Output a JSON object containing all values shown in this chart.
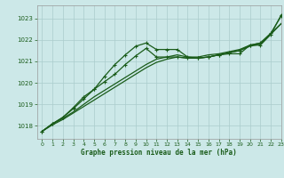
{
  "background_color": "#cce8e8",
  "grid_color": "#aacccc",
  "line_color": "#1a5c1a",
  "title": "Graphe pression niveau de la mer (hPa)",
  "xlim": [
    -0.5,
    23
  ],
  "ylim": [
    1017.4,
    1023.6
  ],
  "yticks": [
    1018,
    1019,
    1020,
    1021,
    1022,
    1023
  ],
  "xticks": [
    0,
    1,
    2,
    3,
    4,
    5,
    6,
    7,
    8,
    9,
    10,
    11,
    12,
    13,
    14,
    15,
    16,
    17,
    18,
    19,
    20,
    21,
    22,
    23
  ],
  "s1_x": [
    0,
    1,
    2,
    3,
    4,
    5,
    6,
    7,
    8,
    9,
    10,
    11,
    12,
    13,
    14,
    15,
    16,
    17,
    18,
    19,
    20,
    21,
    22,
    23
  ],
  "s1_y": [
    1017.75,
    1018.1,
    1018.4,
    1018.8,
    1019.25,
    1019.7,
    1020.3,
    1020.85,
    1021.3,
    1021.7,
    1021.85,
    1021.55,
    1021.55,
    1021.55,
    1021.2,
    1021.15,
    1021.2,
    1021.3,
    1021.35,
    1021.35,
    1021.75,
    1021.75,
    1022.25,
    1023.15
  ],
  "s2_x": [
    0,
    1,
    2,
    3,
    4,
    5,
    6,
    7,
    8,
    9,
    10,
    11,
    12,
    13,
    14,
    15,
    16,
    17,
    18,
    19,
    20,
    21,
    22,
    23
  ],
  "s2_y": [
    1017.75,
    1018.1,
    1018.35,
    1018.65,
    1019.0,
    1019.35,
    1019.65,
    1019.95,
    1020.25,
    1020.55,
    1020.85,
    1021.1,
    1021.2,
    1021.3,
    1021.2,
    1021.2,
    1021.3,
    1021.35,
    1021.45,
    1021.55,
    1021.75,
    1021.85,
    1022.3,
    1022.75
  ],
  "s3_x": [
    0,
    1,
    2,
    3,
    4,
    5,
    6,
    7,
    8,
    9,
    10,
    11,
    12,
    13,
    14,
    15,
    16,
    17,
    18,
    19,
    20,
    21,
    22,
    23
  ],
  "s3_y": [
    1017.75,
    1018.05,
    1018.3,
    1018.6,
    1018.9,
    1019.2,
    1019.5,
    1019.8,
    1020.1,
    1020.4,
    1020.7,
    1020.95,
    1021.1,
    1021.2,
    1021.15,
    1021.15,
    1021.2,
    1021.3,
    1021.4,
    1021.5,
    1021.7,
    1021.8,
    1022.25,
    1022.75
  ],
  "s4_x": [
    0,
    1,
    2,
    3,
    4,
    5,
    6,
    7,
    8,
    9,
    10,
    11,
    12,
    13,
    14,
    15,
    16,
    17,
    18,
    19,
    20,
    21,
    22,
    23
  ],
  "s4_y": [
    1017.75,
    1018.1,
    1018.4,
    1018.85,
    1019.35,
    1019.7,
    1020.05,
    1020.4,
    1020.85,
    1021.25,
    1021.6,
    1021.2,
    1021.2,
    1021.2,
    1021.15,
    1021.15,
    1021.2,
    1021.3,
    1021.4,
    1021.5,
    1021.75,
    1021.85,
    1022.3,
    1023.1
  ]
}
